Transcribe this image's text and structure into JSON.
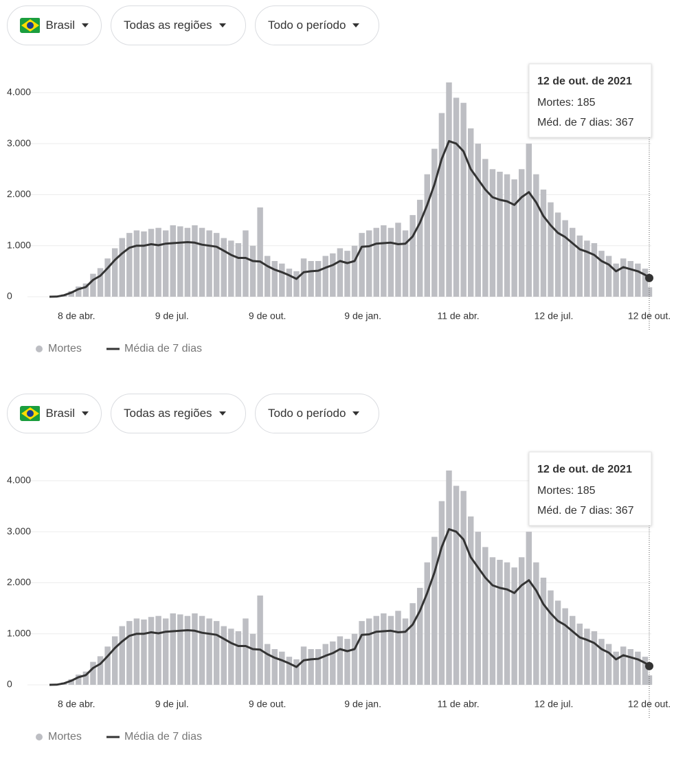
{
  "filters": [
    [
      "Brasil",
      "Todas as regiões",
      "Todo o período"
    ],
    [
      "Brasil",
      "Todas as regiões",
      "Todo o período"
    ]
  ],
  "chart_data": [
    {
      "type": "bar-line",
      "x": [
        0,
        7,
        14,
        21,
        28,
        35,
        42,
        49,
        56,
        63,
        70,
        77,
        84,
        91,
        98,
        105,
        112,
        119,
        126,
        133,
        140,
        147,
        154,
        161,
        168,
        175,
        182,
        189,
        196,
        203,
        210,
        217,
        224,
        231,
        238,
        245,
        252,
        259,
        266,
        273,
        280,
        287,
        294,
        301,
        308,
        315,
        322,
        329,
        336,
        343,
        350,
        357,
        364,
        371,
        378,
        385,
        392,
        399,
        406,
        413,
        420,
        427,
        434,
        441,
        448,
        455,
        462,
        469,
        476,
        483,
        490,
        497,
        504,
        511,
        518,
        525,
        532,
        539,
        546,
        553,
        560,
        567,
        574,
        578
      ],
      "series": [
        {
          "name": "Mortes",
          "color": "#bdbec3",
          "values": [
            0,
            6,
            45,
            110,
            200,
            260,
            450,
            560,
            750,
            950,
            1150,
            1250,
            1300,
            1280,
            1330,
            1350,
            1300,
            1400,
            1380,
            1350,
            1400,
            1350,
            1300,
            1250,
            1150,
            1100,
            1050,
            1300,
            1000,
            1750,
            800,
            700,
            650,
            550,
            500,
            750,
            700,
            700,
            800,
            850,
            950,
            900,
            1000,
            1250,
            1300,
            1350,
            1400,
            1350,
            1450,
            1300,
            1600,
            1900,
            2400,
            2900,
            3600,
            4200,
            3900,
            3800,
            3300,
            3000,
            2700,
            2500,
            2450,
            2400,
            2300,
            2500,
            3000,
            2400,
            2100,
            1850,
            1650,
            1500,
            1350,
            1200,
            1100,
            1050,
            900,
            800,
            650,
            750,
            700,
            650,
            550,
            185
          ]
        },
        {
          "name": "Média de 7 dias",
          "color": "#333333",
          "values": [
            0,
            3,
            30,
            80,
            150,
            190,
            330,
            410,
            560,
            720,
            850,
            960,
            1000,
            1000,
            1030,
            1010,
            1040,
            1050,
            1060,
            1070,
            1060,
            1020,
            1000,
            980,
            900,
            820,
            760,
            760,
            700,
            690,
            600,
            530,
            480,
            420,
            350,
            480,
            500,
            510,
            570,
            620,
            700,
            660,
            700,
            980,
            990,
            1040,
            1050,
            1060,
            1030,
            1040,
            1180,
            1450,
            1800,
            2200,
            2700,
            3050,
            3000,
            2850,
            2500,
            2300,
            2100,
            1950,
            1900,
            1870,
            1800,
            1950,
            2050,
            1850,
            1580,
            1400,
            1250,
            1170,
            1050,
            930,
            880,
            820,
            700,
            630,
            500,
            580,
            540,
            500,
            430,
            367
          ]
        }
      ],
      "xlim": [
        -2,
        580
      ],
      "xticks": [
        {
          "value": 26,
          "label": "8 de abr."
        },
        {
          "value": 118,
          "label": "9 de jul."
        },
        {
          "value": 210,
          "label": "9 de out."
        },
        {
          "value": 302,
          "label": "9 de jan."
        },
        {
          "value": 394,
          "label": "11 de abr."
        },
        {
          "value": 486,
          "label": "12 de jul."
        },
        {
          "value": 578,
          "label": "12 de out."
        }
      ],
      "ylim": [
        0,
        4200
      ],
      "yticks": [
        0,
        {
          "value": 1000,
          "label": "1.000"
        },
        {
          "value": 2000,
          "label": "2.000"
        },
        {
          "value": 3000,
          "label": "3.000"
        },
        {
          "value": 4000,
          "label": "4.000"
        }
      ],
      "grid": true,
      "tooltip": {
        "title": "12 de out. de 2021",
        "lines": [
          "Mortes: 185",
          "Méd. de 7 dias: 367"
        ]
      }
    },
    {
      "type": "bar-line",
      "x": [
        0,
        7,
        14,
        21,
        28,
        35,
        42,
        49,
        56,
        63,
        70,
        77,
        84,
        91,
        98,
        105,
        112,
        119,
        126,
        133,
        140,
        147,
        154,
        161,
        168,
        175,
        182,
        189,
        196,
        203,
        210,
        217,
        224,
        231,
        238,
        245,
        252,
        259,
        266,
        273,
        280,
        287,
        294,
        301,
        308,
        315,
        322,
        329,
        336,
        343,
        350,
        357,
        364,
        371,
        378,
        385,
        392,
        399,
        406,
        413,
        420,
        427,
        434,
        441,
        448,
        455,
        462,
        469,
        476,
        483,
        490,
        497,
        504,
        511,
        518,
        525,
        532,
        539,
        546,
        553,
        560,
        567,
        574,
        578
      ],
      "series": [
        {
          "name": "Mortes",
          "color": "#bdbec3",
          "values": [
            0,
            6,
            45,
            110,
            200,
            260,
            450,
            560,
            750,
            950,
            1150,
            1250,
            1300,
            1280,
            1330,
            1350,
            1300,
            1400,
            1380,
            1350,
            1400,
            1350,
            1300,
            1250,
            1150,
            1100,
            1050,
            1300,
            1000,
            1750,
            800,
            700,
            650,
            550,
            500,
            750,
            700,
            700,
            800,
            850,
            950,
            900,
            1000,
            1250,
            1300,
            1350,
            1400,
            1350,
            1450,
            1300,
            1600,
            1900,
            2400,
            2900,
            3600,
            4200,
            3900,
            3800,
            3300,
            3000,
            2700,
            2500,
            2450,
            2400,
            2300,
            2500,
            3000,
            2400,
            2100,
            1850,
            1650,
            1500,
            1350,
            1200,
            1100,
            1050,
            900,
            800,
            650,
            750,
            700,
            650,
            550,
            185
          ]
        },
        {
          "name": "Média de 7 dias",
          "color": "#333333",
          "values": [
            0,
            3,
            30,
            80,
            150,
            190,
            330,
            410,
            560,
            720,
            850,
            960,
            1000,
            1000,
            1030,
            1010,
            1040,
            1050,
            1060,
            1070,
            1060,
            1020,
            1000,
            980,
            900,
            820,
            760,
            760,
            700,
            690,
            600,
            530,
            480,
            420,
            350,
            480,
            500,
            510,
            570,
            620,
            700,
            660,
            700,
            980,
            990,
            1040,
            1050,
            1060,
            1030,
            1040,
            1180,
            1450,
            1800,
            2200,
            2700,
            3050,
            3000,
            2850,
            2500,
            2300,
            2100,
            1950,
            1900,
            1870,
            1800,
            1950,
            2050,
            1850,
            1580,
            1400,
            1250,
            1170,
            1050,
            930,
            880,
            820,
            700,
            630,
            500,
            580,
            540,
            500,
            430,
            367
          ]
        }
      ],
      "xlim": [
        -2,
        580
      ],
      "xticks": [
        {
          "value": 26,
          "label": "8 de abr."
        },
        {
          "value": 118,
          "label": "9 de jul."
        },
        {
          "value": 210,
          "label": "9 de out."
        },
        {
          "value": 302,
          "label": "9 de jan."
        },
        {
          "value": 394,
          "label": "11 de abr."
        },
        {
          "value": 486,
          "label": "12 de jul."
        },
        {
          "value": 578,
          "label": "12 de out."
        }
      ],
      "ylim": [
        0,
        4200
      ],
      "yticks": [
        0,
        {
          "value": 1000,
          "label": "1.000"
        },
        {
          "value": 2000,
          "label": "2.000"
        },
        {
          "value": 3000,
          "label": "3.000"
        },
        {
          "value": 4000,
          "label": "4.000"
        }
      ],
      "grid": true,
      "tooltip": {
        "title": "12 de out. de 2021",
        "lines": [
          "Mortes: 185",
          "Méd. de 7 dias: 367"
        ]
      }
    }
  ]
}
